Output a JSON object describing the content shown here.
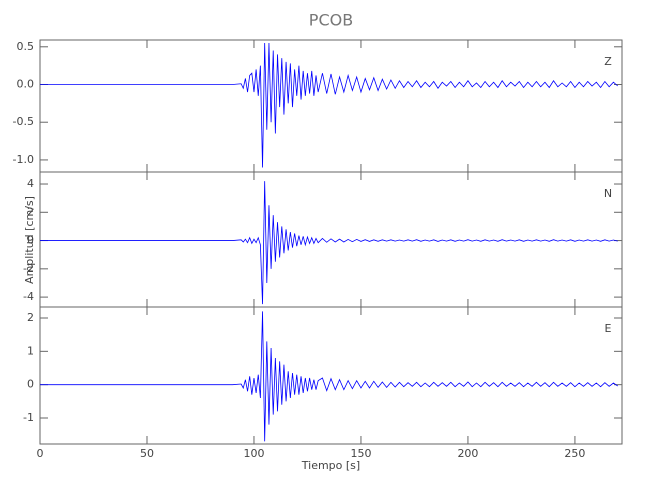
{
  "chart_data": [
    {
      "type": "line",
      "title": "PCOB",
      "xlim": [
        0,
        272
      ],
      "ylim": [
        -1.16,
        0.59
      ],
      "yticks": [
        0.5,
        {
          "value": 0,
          "label": "0.0"
        },
        -0.5,
        {
          "value": -1,
          "label": "-1.0"
        }
      ],
      "x": [
        0,
        20,
        40,
        60,
        80,
        90,
        94,
        95,
        96,
        97,
        98,
        99,
        100,
        101,
        102,
        103,
        104,
        105,
        106,
        107,
        108,
        109,
        110,
        111,
        112,
        113,
        114,
        115,
        116,
        117,
        118,
        119,
        120,
        121,
        122,
        123,
        124,
        125,
        126,
        127,
        128,
        129,
        130,
        132,
        134,
        136,
        138,
        140,
        142,
        144,
        146,
        148,
        150,
        152,
        154,
        156,
        158,
        160,
        162,
        164,
        166,
        168,
        170,
        172,
        174,
        176,
        178,
        180,
        182,
        184,
        186,
        188,
        190,
        192,
        194,
        196,
        198,
        200,
        202,
        204,
        206,
        208,
        210,
        212,
        214,
        216,
        218,
        220,
        222,
        224,
        226,
        228,
        230,
        232,
        234,
        236,
        238,
        240,
        242,
        244,
        246,
        248,
        250,
        252,
        254,
        256,
        258,
        260,
        262,
        264,
        266,
        268,
        270
      ],
      "series": [
        {
          "name": "Z",
          "color": "#0000ff",
          "values": [
            0,
            0,
            0,
            0,
            0,
            0,
            0.01,
            -0.05,
            0.08,
            -0.1,
            0.12,
            0.15,
            -0.1,
            0.2,
            -0.15,
            0.25,
            -1.1,
            0.55,
            -0.6,
            0.55,
            -0.5,
            0.45,
            -0.65,
            0.4,
            -0.3,
            0.35,
            -0.4,
            0.3,
            -0.25,
            0.28,
            -0.3,
            0.2,
            -0.15,
            0.25,
            -0.2,
            0.18,
            -0.15,
            0.15,
            -0.12,
            0.18,
            -0.15,
            0.12,
            -0.1,
            0.15,
            -0.12,
            0.14,
            -0.13,
            0.1,
            -0.1,
            0.12,
            -0.08,
            0.1,
            -0.1,
            0.08,
            -0.07,
            0.09,
            -0.08,
            0.07,
            -0.06,
            0.06,
            -0.05,
            0.05,
            -0.04,
            0.04,
            -0.03,
            0.05,
            -0.04,
            0.03,
            -0.03,
            0.04,
            -0.05,
            0.03,
            -0.02,
            0.04,
            -0.04,
            0.03,
            -0.03,
            0.05,
            -0.03,
            0.02,
            -0.04,
            0.04,
            -0.03,
            0.03,
            -0.04,
            0.05,
            -0.03,
            0.03,
            -0.02,
            0.04,
            -0.04,
            0.03,
            -0.03,
            0.04,
            -0.03,
            0.03,
            -0.04,
            0.05,
            -0.03,
            0.02,
            -0.03,
            0.04,
            -0.04,
            0.03,
            -0.03,
            0.04,
            -0.02,
            0.03,
            -0.04,
            0.04,
            -0.03,
            0.03,
            -0.02
          ]
        }
      ]
    },
    {
      "type": "line",
      "ylabel": "Amplitud [cm/s]",
      "xlim": [
        0,
        272
      ],
      "ylim": [
        -4.7,
        4.85
      ],
      "yticks": [
        4,
        2,
        0,
        -2,
        -4
      ],
      "x": [
        0,
        20,
        40,
        60,
        80,
        90,
        94,
        95,
        96,
        97,
        98,
        99,
        100,
        101,
        102,
        103,
        104,
        105,
        106,
        107,
        108,
        109,
        110,
        111,
        112,
        113,
        114,
        115,
        116,
        117,
        118,
        119,
        120,
        121,
        122,
        123,
        124,
        125,
        126,
        127,
        128,
        129,
        130,
        132,
        134,
        136,
        138,
        140,
        142,
        144,
        146,
        148,
        150,
        152,
        154,
        156,
        158,
        160,
        162,
        164,
        166,
        168,
        170,
        172,
        174,
        176,
        178,
        180,
        182,
        184,
        186,
        188,
        190,
        192,
        194,
        196,
        198,
        200,
        202,
        204,
        206,
        208,
        210,
        212,
        214,
        216,
        218,
        220,
        222,
        224,
        226,
        228,
        230,
        232,
        234,
        236,
        238,
        240,
        242,
        244,
        246,
        248,
        250,
        252,
        254,
        256,
        258,
        260,
        262,
        264,
        266,
        268,
        270
      ],
      "series": [
        {
          "name": "N",
          "color": "#0000ff",
          "values": [
            0,
            0,
            0,
            0,
            0,
            0,
            0.05,
            -0.1,
            0.1,
            -0.15,
            0.2,
            -0.2,
            0.1,
            -0.15,
            0.2,
            -0.3,
            -4.5,
            4.2,
            -3.0,
            2.5,
            -2.0,
            1.8,
            -1.5,
            1.3,
            -1.2,
            1.0,
            -0.9,
            0.8,
            -0.7,
            0.6,
            -0.5,
            0.5,
            -0.4,
            0.35,
            -0.3,
            0.3,
            -0.3,
            0.25,
            -0.2,
            0.2,
            -0.2,
            0.15,
            -0.15,
            0.15,
            -0.12,
            0.12,
            -0.1,
            0.1,
            -0.1,
            0.08,
            -0.08,
            0.08,
            -0.06,
            0.06,
            -0.06,
            0.05,
            -0.05,
            0.05,
            -0.04,
            0.05,
            -0.04,
            0.04,
            -0.04,
            0.05,
            -0.04,
            0.06,
            -0.05,
            0.04,
            -0.04,
            0.05,
            -0.06,
            0.04,
            -0.04,
            0.05,
            -0.05,
            0.04,
            -0.04,
            0.06,
            -0.04,
            0.04,
            -0.05,
            0.05,
            -0.04,
            0.04,
            -0.05,
            0.06,
            -0.04,
            0.04,
            -0.04,
            0.05,
            -0.05,
            0.04,
            -0.04,
            0.05,
            -0.04,
            0.04,
            -0.05,
            0.06,
            -0.04,
            0.04,
            -0.04,
            0.05,
            -0.05,
            0.04,
            -0.04,
            0.05,
            -0.04,
            0.04,
            -0.05,
            0.05,
            -0.04,
            0.04,
            -0.04
          ]
        }
      ]
    },
    {
      "type": "line",
      "xlabel": "Tiempo [s]",
      "xlim": [
        0,
        272
      ],
      "ylim": [
        -1.78,
        2.33
      ],
      "xticks": [
        0,
        50,
        100,
        150,
        200,
        250
      ],
      "yticks": [
        2,
        1,
        0,
        -1
      ],
      "x": [
        0,
        20,
        40,
        60,
        80,
        90,
        94,
        95,
        96,
        97,
        98,
        99,
        100,
        101,
        102,
        103,
        104,
        105,
        106,
        107,
        108,
        109,
        110,
        111,
        112,
        113,
        114,
        115,
        116,
        117,
        118,
        119,
        120,
        121,
        122,
        123,
        124,
        125,
        126,
        127,
        128,
        129,
        130,
        132,
        134,
        136,
        138,
        140,
        142,
        144,
        146,
        148,
        150,
        152,
        154,
        156,
        158,
        160,
        162,
        164,
        166,
        168,
        170,
        172,
        174,
        176,
        178,
        180,
        182,
        184,
        186,
        188,
        190,
        192,
        194,
        196,
        198,
        200,
        202,
        204,
        206,
        208,
        210,
        212,
        214,
        216,
        218,
        220,
        222,
        224,
        226,
        228,
        230,
        232,
        234,
        236,
        238,
        240,
        242,
        244,
        246,
        248,
        250,
        252,
        254,
        256,
        258,
        260,
        262,
        264,
        266,
        268,
        270
      ],
      "series": [
        {
          "name": "E",
          "color": "#0000ff",
          "values": [
            0,
            0,
            0,
            0,
            0,
            0,
            0.02,
            -0.1,
            0.15,
            -0.2,
            0.25,
            -0.3,
            0.2,
            -0.25,
            0.3,
            -0.4,
            2.2,
            -1.7,
            1.3,
            -1.2,
            1.1,
            -0.9,
            0.8,
            -0.8,
            0.7,
            -0.6,
            0.6,
            -0.5,
            0.4,
            -0.4,
            0.35,
            -0.3,
            0.3,
            -0.3,
            0.25,
            -0.25,
            0.2,
            -0.2,
            0.2,
            -0.15,
            0.15,
            -0.15,
            0.12,
            0.2,
            -0.18,
            0.18,
            -0.15,
            0.15,
            -0.15,
            0.12,
            -0.12,
            0.12,
            -0.1,
            0.1,
            -0.1,
            0.1,
            -0.08,
            0.08,
            -0.08,
            0.07,
            -0.07,
            0.07,
            -0.06,
            0.06,
            -0.05,
            0.07,
            -0.06,
            0.05,
            -0.06,
            0.07,
            -0.05,
            0.06,
            -0.05,
            0.07,
            -0.06,
            0.05,
            -0.05,
            0.08,
            -0.06,
            0.05,
            -0.06,
            0.07,
            -0.05,
            0.06,
            -0.06,
            0.07,
            -0.05,
            0.05,
            -0.05,
            0.06,
            -0.06,
            0.05,
            -0.05,
            0.07,
            -0.05,
            0.06,
            -0.06,
            0.07,
            -0.05,
            0.05,
            -0.05,
            0.06,
            -0.06,
            0.05,
            -0.05,
            0.06,
            -0.05,
            0.05,
            -0.06,
            0.06,
            -0.05,
            0.05,
            -0.04
          ]
        }
      ]
    }
  ]
}
